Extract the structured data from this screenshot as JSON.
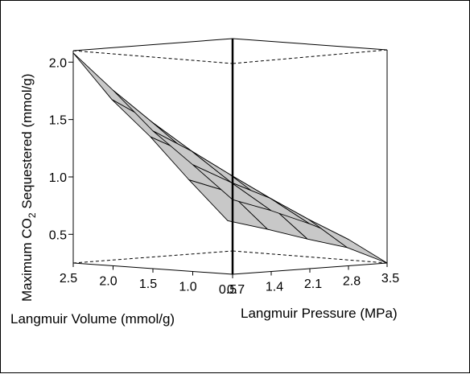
{
  "chart_data": {
    "type": "surface",
    "title": "",
    "zlabel": {
      "prefix": "Maximum CO",
      "subscript": "2",
      "suffix": " Sequestered (mmol/g)"
    },
    "xlabel": "Langmuir Volume (mmol/g)",
    "ylabel": "Langmuir Pressure (MPa)",
    "x_ticks": [
      "2.5",
      "2.0",
      "1.5",
      "1.0",
      "0.5"
    ],
    "y_ticks": [
      "0.7",
      "1.4",
      "2.1",
      "2.8",
      "3.5"
    ],
    "z_ticks": [
      "0.5",
      "1.0",
      "1.5",
      "2.0"
    ],
    "x_values": [
      2.5,
      2.0,
      1.5,
      1.0,
      0.5
    ],
    "y_values": [
      0.7,
      1.4,
      2.1,
      2.8,
      3.5
    ],
    "z_range": [
      0.25,
      2.1
    ],
    "z_surface": [
      [
        2.08,
        1.65,
        1.3,
        0.9,
        0.52
      ],
      [
        1.78,
        1.48,
        1.17,
        0.82,
        0.47
      ],
      [
        1.45,
        1.25,
        1.02,
        0.74,
        0.41
      ],
      [
        1.18,
        1.0,
        0.84,
        0.63,
        0.36
      ],
      [
        0.9,
        0.78,
        0.64,
        0.48,
        0.25
      ]
    ],
    "surface_color": "#c8c8c8",
    "mesh_color": "#000000",
    "box": true
  }
}
